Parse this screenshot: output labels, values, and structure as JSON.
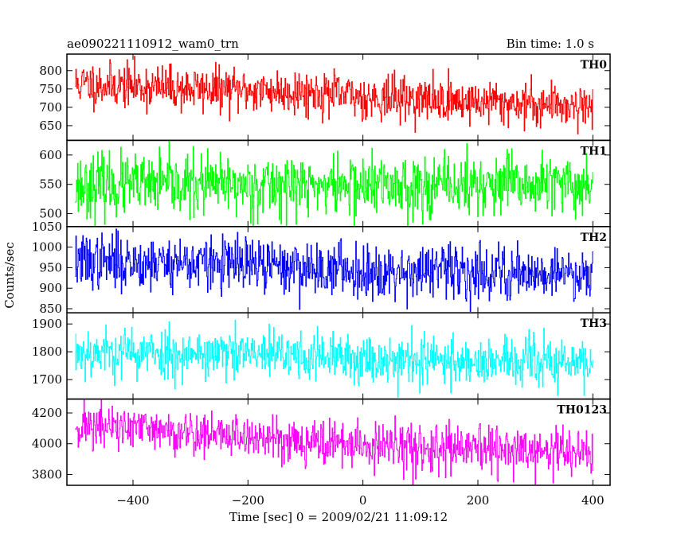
{
  "header": {
    "title": "ae090221110912_wam0_trn",
    "bin_time": "Bin time: 1.0 s"
  },
  "chart_data": {
    "type": "line",
    "title": "ae090221110912_wam0_trn",
    "subtitle": "Bin time: 1.0 s",
    "xlabel": "Time [sec] 0 = 2009/02/21 11:09:12",
    "ylabel": "Counts/sec",
    "xlim": [
      -515,
      430
    ],
    "x_start": -500,
    "x_end": 400,
    "x_step": 1,
    "xticks": [
      -400,
      -200,
      0,
      200,
      400
    ],
    "xtick_labels": [
      "−400",
      "−200",
      "0",
      "200",
      "400"
    ],
    "grid": false,
    "panels": [
      {
        "name": "TH0",
        "color": "#ff0000",
        "ylim": [
          610,
          845
        ],
        "yticks": [
          650,
          700,
          750,
          800
        ],
        "ytick_labels": [
          "650",
          "700",
          "750",
          "800"
        ],
        "trend": [
          [
            -500,
            765
          ],
          [
            -300,
            750
          ],
          [
            -100,
            742
          ],
          [
            0,
            728
          ],
          [
            200,
            715
          ],
          [
            400,
            705
          ]
        ],
        "noise_sd": 30,
        "seed": 11
      },
      {
        "name": "TH1",
        "color": "#00ff00",
        "ylim": [
          478,
          625
        ],
        "yticks": [
          500,
          550,
          600
        ],
        "ytick_labels": [
          "500",
          "550",
          "600"
        ],
        "trend": [
          [
            -500,
            548
          ],
          [
            400,
            548
          ]
        ],
        "noise_sd": 26,
        "seed": 23
      },
      {
        "name": "TH2",
        "color": "#0000ff",
        "ylim": [
          840,
          1050
        ],
        "yticks": [
          850,
          900,
          950,
          1000,
          1050
        ],
        "ytick_labels": [
          "850",
          "900",
          "950",
          "1000",
          "1050"
        ],
        "trend": [
          [
            -500,
            965
          ],
          [
            -300,
            962
          ],
          [
            -100,
            950
          ],
          [
            0,
            943
          ],
          [
            200,
            940
          ],
          [
            400,
            937
          ]
        ],
        "noise_sd": 33,
        "seed": 37
      },
      {
        "name": "TH3",
        "color": "#00ffff",
        "ylim": [
          1630,
          1940
        ],
        "yticks": [
          1700,
          1800,
          1900
        ],
        "ytick_labels": [
          "1700",
          "1800",
          "1900"
        ],
        "trend": [
          [
            -500,
            1800
          ],
          [
            -200,
            1790
          ],
          [
            0,
            1775
          ],
          [
            200,
            1765
          ],
          [
            400,
            1758
          ]
        ],
        "noise_sd": 45,
        "seed": 53
      },
      {
        "name": "TH0123",
        "color": "#ff00ff",
        "ylim": [
          3730,
          4290
        ],
        "yticks": [
          3800,
          4000,
          4200
        ],
        "ytick_labels": [
          "3800",
          "4000",
          "4200"
        ],
        "trend": [
          [
            -500,
            4120
          ],
          [
            -300,
            4070
          ],
          [
            -100,
            4020
          ],
          [
            0,
            3985
          ],
          [
            200,
            3955
          ],
          [
            400,
            3945
          ]
        ],
        "noise_sd": 75,
        "seed": 71
      }
    ]
  }
}
